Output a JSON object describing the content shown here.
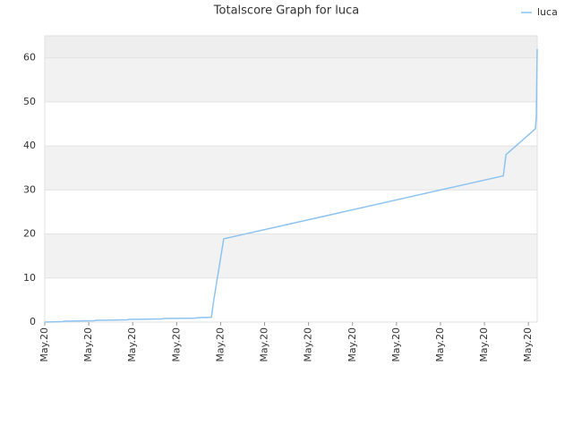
{
  "chart_data": {
    "type": "line",
    "title": "Totalscore Graph for luca",
    "series": [
      {
        "name": "luca",
        "color": "#8ec3f0",
        "x": [
          0,
          0.41,
          0.45,
          1.12,
          1.18,
          1.87,
          1.93,
          2.65,
          2.71,
          3.42,
          3.48,
          3.79,
          3.83,
          4.07,
          10.43,
          10.49,
          11.16,
          11.18,
          11.2
        ],
        "values": [
          0,
          0.1,
          0.2,
          0.3,
          0.4,
          0.5,
          0.6,
          0.7,
          0.8,
          0.9,
          1.0,
          1.1,
          4.1,
          18.9,
          33.2,
          38.0,
          43.9,
          46.8,
          62
        ]
      }
    ],
    "xlim": [
      0,
      11.2
    ],
    "xticks": [
      {
        "value": 0,
        "label": "May.20"
      },
      {
        "value": 1,
        "label": "May.20"
      },
      {
        "value": 2,
        "label": "May.20"
      },
      {
        "value": 3,
        "label": "May.20"
      },
      {
        "value": 4,
        "label": "May.20"
      },
      {
        "value": 5,
        "label": "May.20"
      },
      {
        "value": 6,
        "label": "May.20"
      },
      {
        "value": 7,
        "label": "May.20"
      },
      {
        "value": 8,
        "label": "May.20"
      },
      {
        "value": 9,
        "label": "May.20"
      },
      {
        "value": 10,
        "label": "May.20"
      },
      {
        "value": 11,
        "label": "May.20"
      }
    ],
    "ylim": [
      0,
      65
    ],
    "yticks": [
      0,
      10,
      20,
      30,
      40,
      50,
      60
    ],
    "grid": true,
    "legend": "top-right"
  }
}
